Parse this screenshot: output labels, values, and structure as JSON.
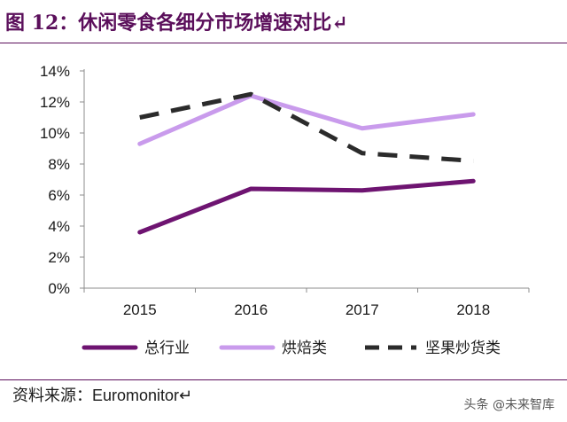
{
  "title": "图 12：休闲零食各细分市场增速对比↵",
  "source": "资料来源：Euromonitor↵",
  "watermark": "头条 @未来智库",
  "colors": {
    "title": "#5b0f5b",
    "rule": "#5b0f5b"
  },
  "chart_data": {
    "type": "line",
    "x": [
      "2015",
      "2016",
      "2017",
      "2018"
    ],
    "ylim": [
      0,
      14
    ],
    "yticks": [
      0,
      2,
      4,
      6,
      8,
      10,
      12,
      14
    ],
    "ytick_format": "percent",
    "grid": false,
    "legend_position": "bottom",
    "series": [
      {
        "name": "总行业",
        "values": [
          3.6,
          6.4,
          6.3,
          6.9
        ],
        "color": "#6e1471",
        "dash": "solid"
      },
      {
        "name": "烘焙类",
        "values": [
          9.3,
          12.4,
          10.3,
          11.2
        ],
        "color": "#c99bec",
        "dash": "solid"
      },
      {
        "name": "坚果炒货类",
        "values": [
          11.0,
          12.5,
          8.7,
          8.2
        ],
        "color": "#2b2b2b",
        "dash": "dashed"
      }
    ]
  }
}
